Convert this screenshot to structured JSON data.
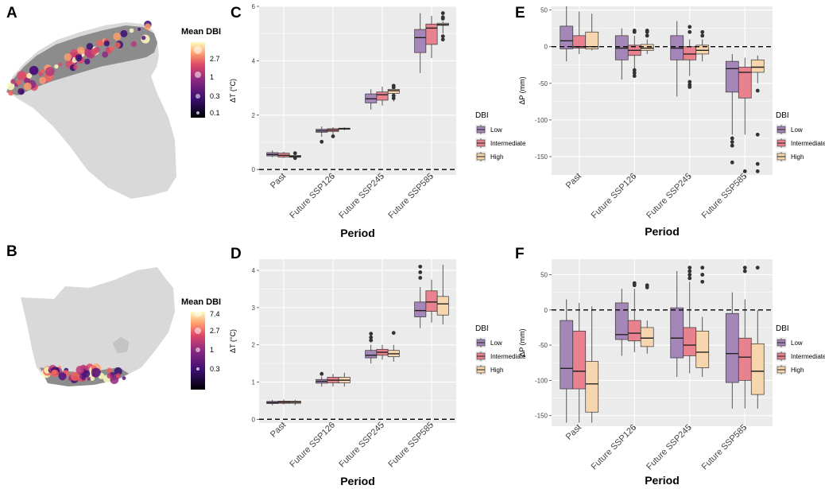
{
  "panels": {
    "a": "A",
    "b": "B",
    "c": "C",
    "d": "D",
    "e": "E",
    "f": "F"
  },
  "maps": {
    "a": {
      "title": "Mean DBI",
      "ticks": [
        "2.7",
        "1",
        "0.3",
        "0.1"
      ]
    },
    "b": {
      "title": "Mean DBI",
      "ticks": [
        "7.4",
        "2.7",
        "1",
        "0.3"
      ]
    }
  },
  "colors": {
    "panel_bg": "#ebebeb",
    "grid": "#ffffff",
    "Low": "#a586b8",
    "Intermediate": "#e8828f",
    "High": "#f7d6ad",
    "land": "#d9d9d9",
    "range": "#8c8c8c"
  },
  "chart_data": [
    {
      "id": "c",
      "type": "box",
      "title": "",
      "xlabel": "Period",
      "ylabel": "ΔT (°C)",
      "ylim": [
        -0.2,
        6.0
      ],
      "yticks": [
        0,
        2,
        4,
        6
      ],
      "hline": 0,
      "categories": [
        "Past",
        "Future SSP126",
        "Future SSP245",
        "Future SSP585"
      ],
      "legend": {
        "title": "DBI",
        "entries": [
          "Low",
          "Intermediate",
          "High"
        ]
      },
      "series": [
        {
          "name": "Low",
          "boxes": [
            {
              "min": 0.45,
              "q1": 0.5,
              "med": 0.55,
              "q3": 0.62,
              "max": 0.7,
              "out": []
            },
            {
              "min": 1.2,
              "q1": 1.37,
              "med": 1.42,
              "q3": 1.48,
              "max": 1.58,
              "out": [
                1.02
              ]
            },
            {
              "min": 2.2,
              "q1": 2.45,
              "med": 2.6,
              "q3": 2.78,
              "max": 2.95,
              "out": []
            },
            {
              "min": 3.55,
              "q1": 4.3,
              "med": 4.85,
              "q3": 5.15,
              "max": 5.75,
              "out": []
            }
          ]
        },
        {
          "name": "Intermediate",
          "boxes": [
            {
              "min": 0.42,
              "q1": 0.46,
              "med": 0.52,
              "q3": 0.6,
              "max": 0.65,
              "out": []
            },
            {
              "min": 1.3,
              "q1": 1.4,
              "med": 1.45,
              "q3": 1.5,
              "max": 1.55,
              "out": [
                1.22
              ]
            },
            {
              "min": 2.35,
              "q1": 2.55,
              "med": 2.75,
              "q3": 2.85,
              "max": 3.05,
              "out": []
            },
            {
              "min": 4.1,
              "q1": 4.6,
              "med": 5.2,
              "q3": 5.35,
              "max": 5.65,
              "out": []
            }
          ]
        },
        {
          "name": "High",
          "boxes": [
            {
              "min": 0.4,
              "q1": 0.45,
              "med": 0.48,
              "q3": 0.52,
              "max": 0.55,
              "out": [
                0.42,
                0.6
              ]
            },
            {
              "min": 1.45,
              "q1": 1.48,
              "med": 1.5,
              "q3": 1.52,
              "max": 1.55,
              "out": []
            },
            {
              "min": 2.5,
              "q1": 2.8,
              "med": 2.9,
              "q3": 2.95,
              "max": 2.98,
              "out": [
                2.62,
                2.72,
                3.02,
                3.08
              ]
            },
            {
              "min": 5.0,
              "q1": 5.3,
              "med": 5.33,
              "q3": 5.38,
              "max": 5.45,
              "out": [
                4.78,
                4.9,
                5.55,
                5.6,
                5.75
              ]
            }
          ]
        }
      ]
    },
    {
      "id": "d",
      "type": "box",
      "title": "",
      "xlabel": "Period",
      "ylabel": "ΔT (°C)",
      "ylim": [
        -0.1,
        4.3
      ],
      "yticks": [
        0,
        1,
        2,
        3,
        4
      ],
      "hline": 0,
      "categories": [
        "Past",
        "Future SSP126",
        "Future SSP245",
        "Future SSP585"
      ],
      "legend": {
        "title": "DBI",
        "entries": [
          "Low",
          "Intermediate",
          "High"
        ]
      },
      "series": [
        {
          "name": "Low",
          "boxes": [
            {
              "min": 0.38,
              "q1": 0.42,
              "med": 0.45,
              "q3": 0.48,
              "max": 0.52,
              "out": []
            },
            {
              "min": 0.88,
              "q1": 0.97,
              "med": 1.02,
              "q3": 1.07,
              "max": 1.15,
              "out": [
                1.22
              ]
            },
            {
              "min": 1.5,
              "q1": 1.65,
              "med": 1.72,
              "q3": 1.85,
              "max": 2.0,
              "out": [
                2.12,
                2.2,
                2.3
              ]
            },
            {
              "min": 2.45,
              "q1": 2.75,
              "med": 2.92,
              "q3": 3.15,
              "max": 3.55,
              "out": [
                3.8,
                3.95,
                4.1
              ]
            }
          ]
        },
        {
          "name": "Intermediate",
          "boxes": [
            {
              "min": 0.4,
              "q1": 0.43,
              "med": 0.46,
              "q3": 0.49,
              "max": 0.53,
              "out": []
            },
            {
              "min": 0.88,
              "q1": 0.98,
              "med": 1.05,
              "q3": 1.13,
              "max": 1.22,
              "out": []
            },
            {
              "min": 1.6,
              "q1": 1.72,
              "med": 1.8,
              "q3": 1.88,
              "max": 2.0,
              "out": []
            },
            {
              "min": 2.6,
              "q1": 2.9,
              "med": 3.15,
              "q3": 3.45,
              "max": 3.75,
              "out": []
            }
          ]
        },
        {
          "name": "High",
          "boxes": [
            {
              "min": 0.38,
              "q1": 0.43,
              "med": 0.46,
              "q3": 0.49,
              "max": 0.52,
              "out": []
            },
            {
              "min": 0.88,
              "q1": 0.98,
              "med": 1.05,
              "q3": 1.13,
              "max": 1.25,
              "out": []
            },
            {
              "min": 1.55,
              "q1": 1.68,
              "med": 1.76,
              "q3": 1.85,
              "max": 2.0,
              "out": [
                2.32
              ]
            },
            {
              "min": 2.55,
              "q1": 2.8,
              "med": 3.1,
              "q3": 3.3,
              "max": 4.15,
              "out": []
            }
          ]
        }
      ]
    },
    {
      "id": "e",
      "type": "box",
      "title": "",
      "xlabel": "Period",
      "ylabel": "ΔP (mm)",
      "ylim": [
        -175,
        55
      ],
      "yticks": [
        50,
        0,
        -50,
        -100,
        -150
      ],
      "hline": 0,
      "categories": [
        "Past",
        "Future SSP126",
        "Future SSP245",
        "Future SSP585"
      ],
      "legend": {
        "title": "DBI",
        "entries": [
          "Low",
          "Intermediate",
          "High"
        ]
      },
      "series": [
        {
          "name": "Low",
          "boxes": [
            {
              "min": -20,
              "q1": -3,
              "med": 8,
              "q3": 28,
              "max": 55,
              "out": []
            },
            {
              "min": -45,
              "q1": -18,
              "med": -2,
              "q3": 15,
              "max": 25,
              "out": []
            },
            {
              "min": -68,
              "q1": -18,
              "med": -2,
              "q3": 15,
              "max": 35,
              "out": []
            },
            {
              "min": -120,
              "q1": -62,
              "med": -30,
              "q3": -20,
              "max": -10,
              "out": [
                -125,
                -130,
                -135,
                -158
              ]
            }
          ]
        },
        {
          "name": "Intermediate",
          "boxes": [
            {
              "min": -10,
              "q1": -2,
              "med": 0,
              "q3": 15,
              "max": 48,
              "out": []
            },
            {
              "min": -30,
              "q1": -12,
              "med": -5,
              "q3": 2,
              "max": 15,
              "out": [
                -32,
                -36,
                -40,
                20,
                22
              ]
            },
            {
              "min": -40,
              "q1": -18,
              "med": -10,
              "q3": 0,
              "max": 10,
              "out": [
                -48,
                -52,
                -55,
                20,
                27
              ]
            },
            {
              "min": -120,
              "q1": -70,
              "med": -35,
              "q3": -28,
              "max": -15,
              "out": [
                -170
              ]
            }
          ]
        },
        {
          "name": "High",
          "boxes": [
            {
              "min": -5,
              "q1": -3,
              "med": 0,
              "q3": 20,
              "max": 45,
              "out": []
            },
            {
              "min": -10,
              "q1": -5,
              "med": -2,
              "q3": 3,
              "max": 10,
              "out": [
                15,
                20,
                22
              ]
            },
            {
              "min": -20,
              "q1": -10,
              "med": -5,
              "q3": 2,
              "max": 10,
              "out": [
                15,
                20
              ]
            },
            {
              "min": -50,
              "q1": -35,
              "med": -28,
              "q3": -18,
              "max": -12,
              "out": [
                -60,
                -120,
                -160,
                -170
              ]
            }
          ]
        }
      ]
    },
    {
      "id": "f",
      "type": "box",
      "title": "",
      "xlabel": "Period",
      "ylabel": "ΔP (mm)",
      "ylim": [
        -165,
        72
      ],
      "yticks": [
        50,
        0,
        -50,
        -100,
        -150
      ],
      "hline": 0,
      "categories": [
        "Past",
        "Future SSP126",
        "Future SSP245",
        "Future SSP585"
      ],
      "legend": {
        "title": "DBI",
        "entries": [
          "Low",
          "Intermediate",
          "High"
        ]
      },
      "series": [
        {
          "name": "Low",
          "boxes": [
            {
              "min": -160,
              "q1": -112,
              "med": -83,
              "q3": -15,
              "max": 15,
              "out": []
            },
            {
              "min": -65,
              "q1": -42,
              "med": -35,
              "q3": 10,
              "max": 30,
              "out": []
            },
            {
              "min": -95,
              "q1": -68,
              "med": -40,
              "q3": 3,
              "max": 55,
              "out": []
            },
            {
              "min": -140,
              "q1": -103,
              "med": -62,
              "q3": -5,
              "max": 25,
              "out": []
            }
          ]
        },
        {
          "name": "Intermediate",
          "boxes": [
            {
              "min": -160,
              "q1": -112,
              "med": -87,
              "q3": -30,
              "max": 10,
              "out": []
            },
            {
              "min": -60,
              "q1": -44,
              "med": -33,
              "q3": -15,
              "max": 30,
              "out": [
                35,
                38
              ]
            },
            {
              "min": -90,
              "q1": -65,
              "med": -50,
              "q3": -25,
              "max": 40,
              "out": [
                45,
                50,
                55,
                60
              ]
            },
            {
              "min": -140,
              "q1": -100,
              "med": -67,
              "q3": -40,
              "max": 15,
              "out": [
                55,
                60
              ]
            }
          ]
        },
        {
          "name": "High",
          "boxes": [
            {
              "min": -160,
              "q1": -145,
              "med": -105,
              "q3": -73,
              "max": 5,
              "out": []
            },
            {
              "min": -62,
              "q1": -52,
              "med": -40,
              "q3": -25,
              "max": -15,
              "out": [
                32,
                35
              ]
            },
            {
              "min": -95,
              "q1": -82,
              "med": -60,
              "q3": -30,
              "max": -10,
              "out": [
                40,
                50,
                60
              ]
            },
            {
              "min": -140,
              "q1": -120,
              "med": -87,
              "q3": -48,
              "max": 0,
              "out": [
                60
              ]
            }
          ]
        }
      ]
    }
  ]
}
